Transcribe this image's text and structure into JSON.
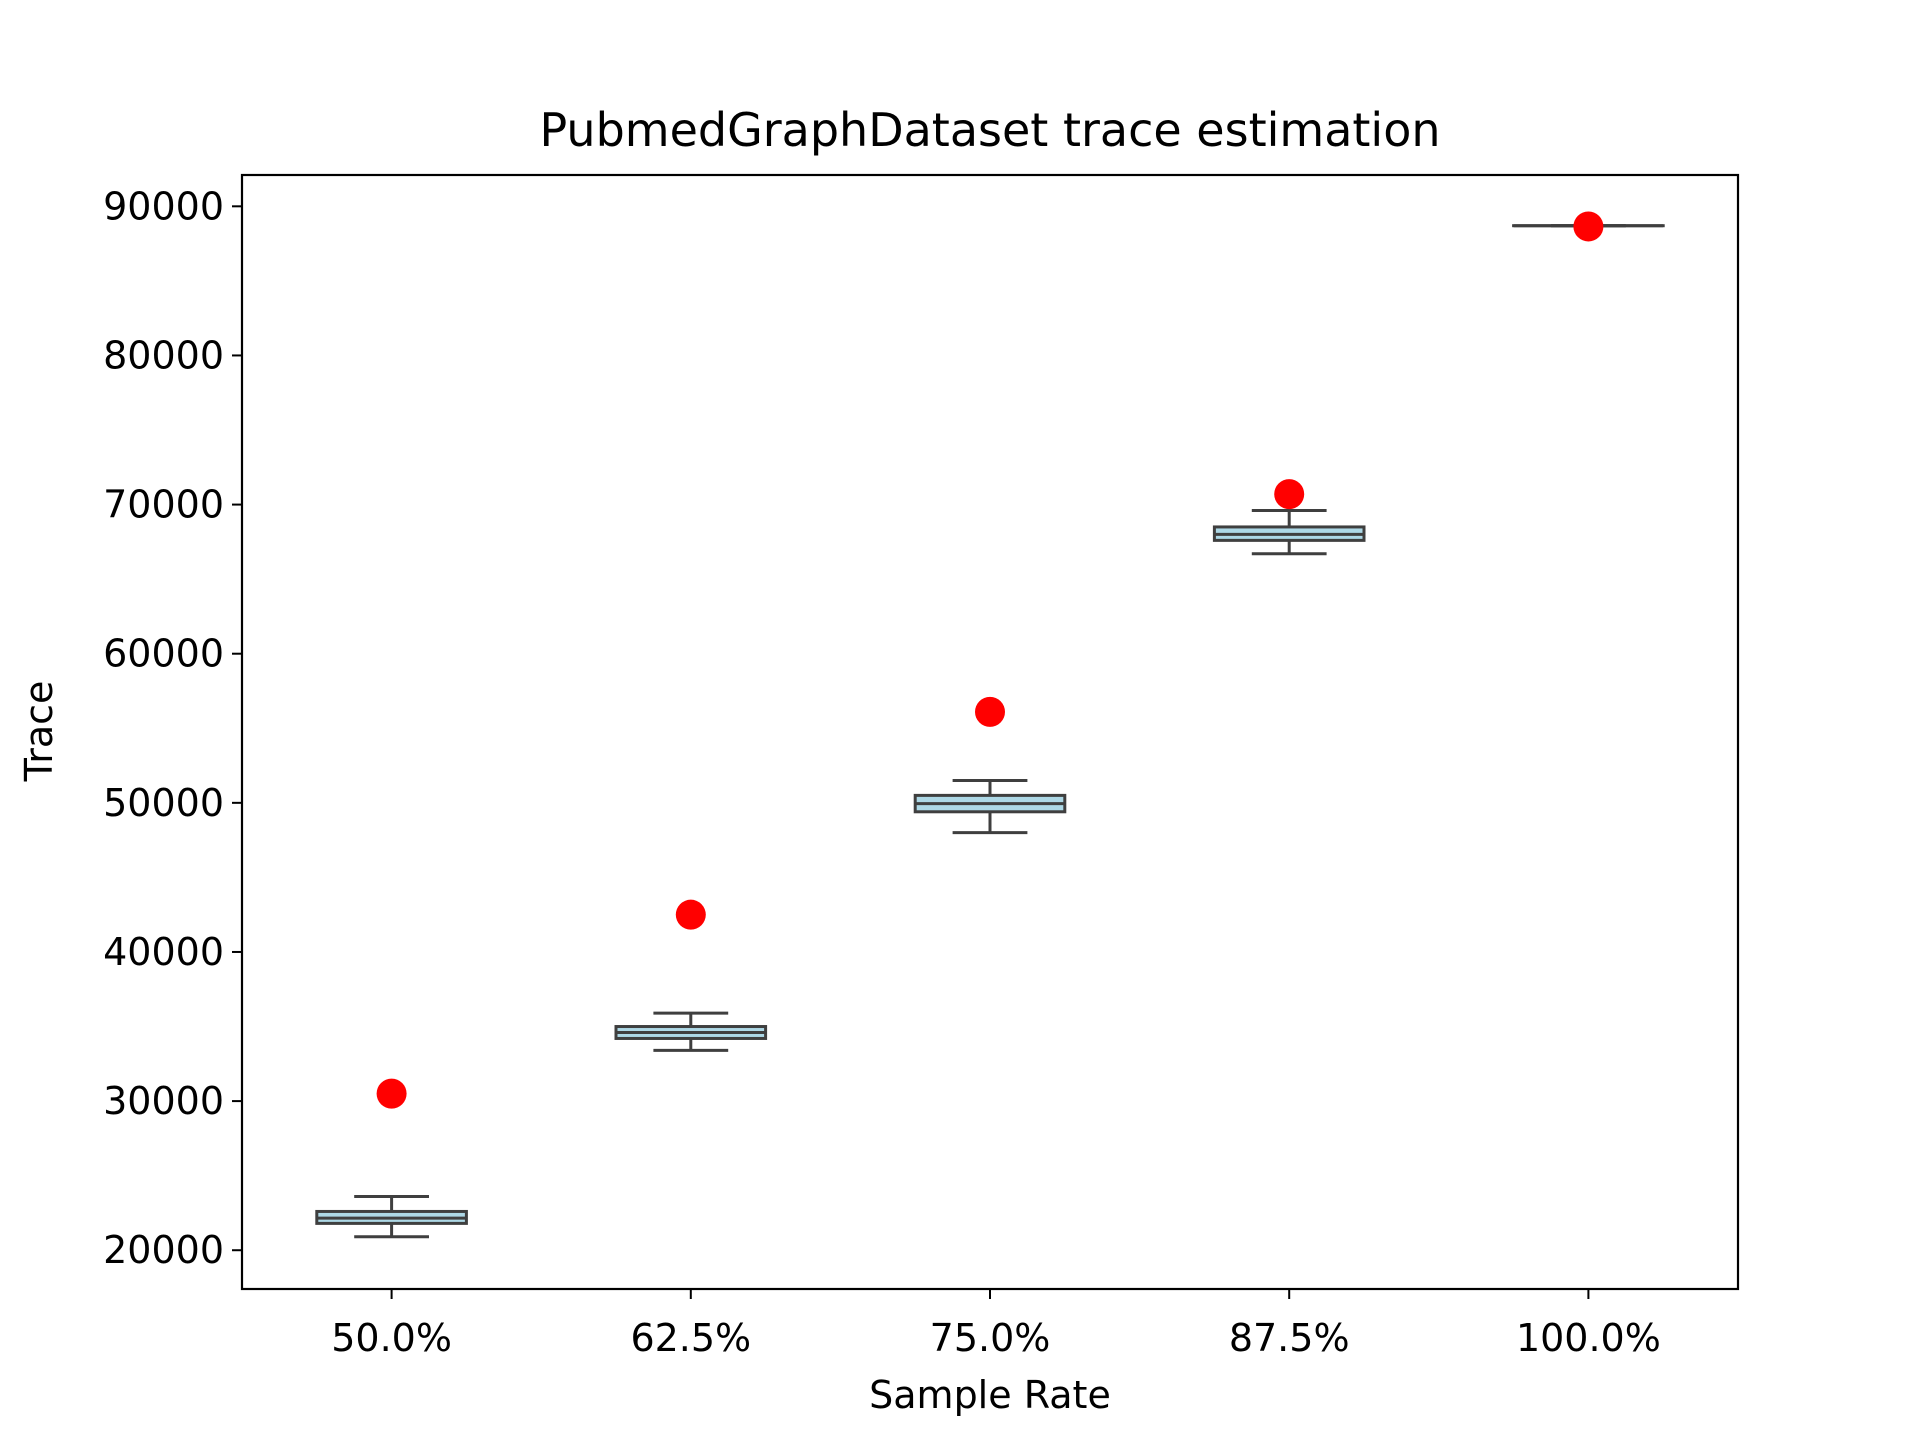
{
  "chart_data": {
    "type": "box",
    "title": "PubmedGraphDataset trace estimation",
    "xlabel": "Sample Rate",
    "ylabel": "Trace",
    "categories": [
      "50.0%",
      "62.5%",
      "75.0%",
      "87.5%",
      "100.0%"
    ],
    "ylim": [
      17400,
      92100
    ],
    "yticks": [
      20000,
      30000,
      40000,
      50000,
      60000,
      70000,
      80000,
      90000
    ],
    "ytick_labels": [
      "20000",
      "30000",
      "40000",
      "50000",
      "60000",
      "70000",
      "80000",
      "90000"
    ],
    "grid": false,
    "legend": "none",
    "box_series": [
      {
        "whisker_low": 20900,
        "q1": 21800,
        "median": 22150,
        "q3": 22600,
        "whisker_high": 23600
      },
      {
        "whisker_low": 33400,
        "q1": 34200,
        "median": 34600,
        "q3": 35000,
        "whisker_high": 35900
      },
      {
        "whisker_low": 48000,
        "q1": 49400,
        "median": 49950,
        "q3": 50500,
        "whisker_high": 51500
      },
      {
        "whisker_low": 66700,
        "q1": 67600,
        "median": 68000,
        "q3": 68500,
        "whisker_high": 69600
      },
      {
        "whisker_low": 88700,
        "q1": 88700,
        "median": 88700,
        "q3": 88700,
        "whisker_high": 88700
      }
    ],
    "points": [
      30500,
      42500,
      56100,
      70700,
      88650
    ],
    "colors": {
      "box_fill": "#add8e6",
      "box_edge": "#3f3f3f",
      "point": "#ff0000",
      "axes": "#000000"
    }
  }
}
